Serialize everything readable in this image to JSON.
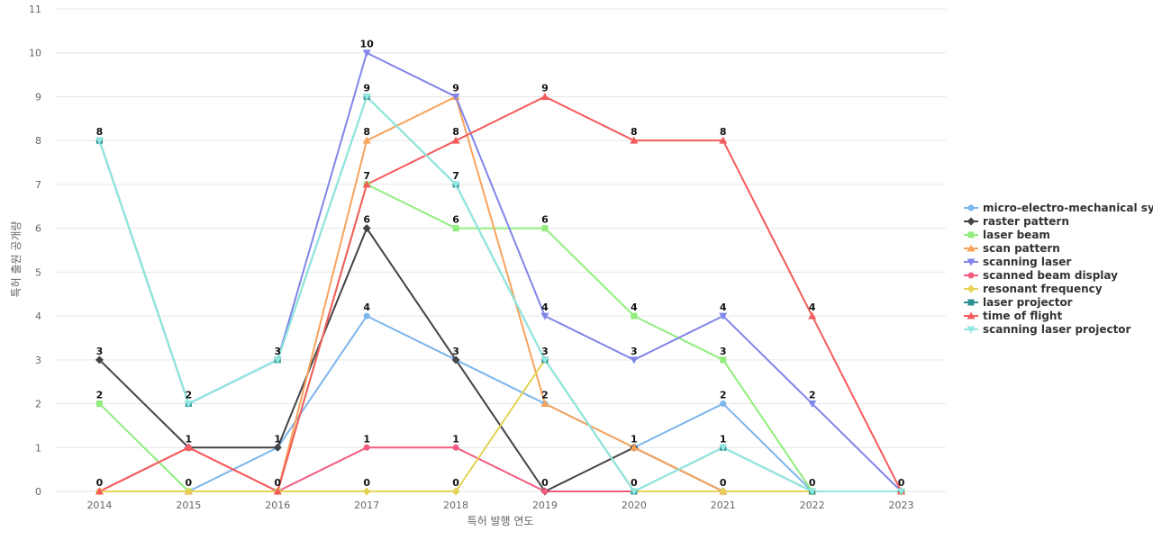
{
  "chart_data": {
    "type": "line",
    "xlabel": "특허 발행 연도",
    "ylabel": "특허 출원 공개량",
    "ylim": [
      0,
      11
    ],
    "grid": true,
    "legend_position": "right",
    "x": [
      "2014",
      "2015",
      "2016",
      "2017",
      "2018",
      "2019",
      "2020",
      "2021",
      "2022",
      "2023"
    ],
    "y_ticks": [
      "0",
      "1",
      "2",
      "3",
      "4",
      "5",
      "6",
      "7",
      "8",
      "9",
      "10",
      "11"
    ],
    "series": [
      {
        "name": "micro-electro-mechanical sy...",
        "color": "#7cb5ec",
        "marker": "circle",
        "values": [
          0,
          0,
          1,
          4,
          3,
          2,
          1,
          2,
          0,
          0
        ]
      },
      {
        "name": "raster pattern",
        "color": "#434348",
        "marker": "diamond",
        "values": [
          3,
          1,
          1,
          6,
          3,
          0,
          1,
          0,
          0,
          0
        ]
      },
      {
        "name": "laser beam",
        "color": "#90ed7d",
        "marker": "square",
        "values": [
          2,
          0,
          0,
          7,
          6,
          6,
          4,
          3,
          0,
          0
        ]
      },
      {
        "name": "scan pattern",
        "color": "#f7a35c",
        "marker": "triangle",
        "values": [
          0,
          0,
          0,
          8,
          9,
          2,
          1,
          0,
          0,
          0
        ]
      },
      {
        "name": "scanning laser",
        "color": "#8085e9",
        "marker": "triangle-down",
        "values": [
          8,
          2,
          3,
          10,
          9,
          4,
          3,
          4,
          2,
          0
        ]
      },
      {
        "name": "scanned beam display",
        "color": "#f15c80",
        "marker": "circle",
        "values": [
          0,
          1,
          0,
          1,
          1,
          0,
          0,
          0,
          0,
          0
        ]
      },
      {
        "name": "resonant frequency",
        "color": "#e4d354",
        "marker": "diamond",
        "values": [
          0,
          0,
          0,
          0,
          0,
          3,
          0,
          0,
          0,
          0
        ]
      },
      {
        "name": "laser projector",
        "color": "#2b908f",
        "marker": "square",
        "values": [
          8,
          2,
          3,
          9,
          7,
          3,
          0,
          1,
          0,
          0
        ]
      },
      {
        "name": "time of flight",
        "color": "#f45b5b",
        "marker": "triangle",
        "values": [
          0,
          1,
          0,
          7,
          8,
          9,
          8,
          8,
          4,
          0
        ]
      },
      {
        "name": "scanning laser projector",
        "color": "#91e8e1",
        "marker": "triangle-down",
        "values": [
          8,
          2,
          3,
          9,
          7,
          3,
          0,
          1,
          0,
          0
        ]
      }
    ],
    "data_labels": [
      {
        "x": "2014",
        "values": [
          8,
          3,
          2,
          0
        ]
      },
      {
        "x": "2015",
        "values": [
          2,
          1,
          0
        ]
      },
      {
        "x": "2016",
        "values": [
          3,
          1,
          0
        ]
      },
      {
        "x": "2017",
        "values": [
          10,
          9,
          8,
          7,
          6,
          4,
          1,
          0
        ]
      },
      {
        "x": "2018",
        "values": [
          9,
          8,
          7,
          6,
          3,
          1,
          0
        ]
      },
      {
        "x": "2019",
        "values": [
          9,
          6,
          4,
          3,
          2,
          0
        ]
      },
      {
        "x": "2020",
        "values": [
          8,
          4,
          3,
          1,
          0
        ]
      },
      {
        "x": "2021",
        "values": [
          8,
          4,
          3,
          2,
          1,
          0
        ]
      },
      {
        "x": "2022",
        "values": [
          4,
          2,
          0
        ]
      },
      {
        "x": "2023",
        "values": [
          0
        ]
      }
    ]
  }
}
